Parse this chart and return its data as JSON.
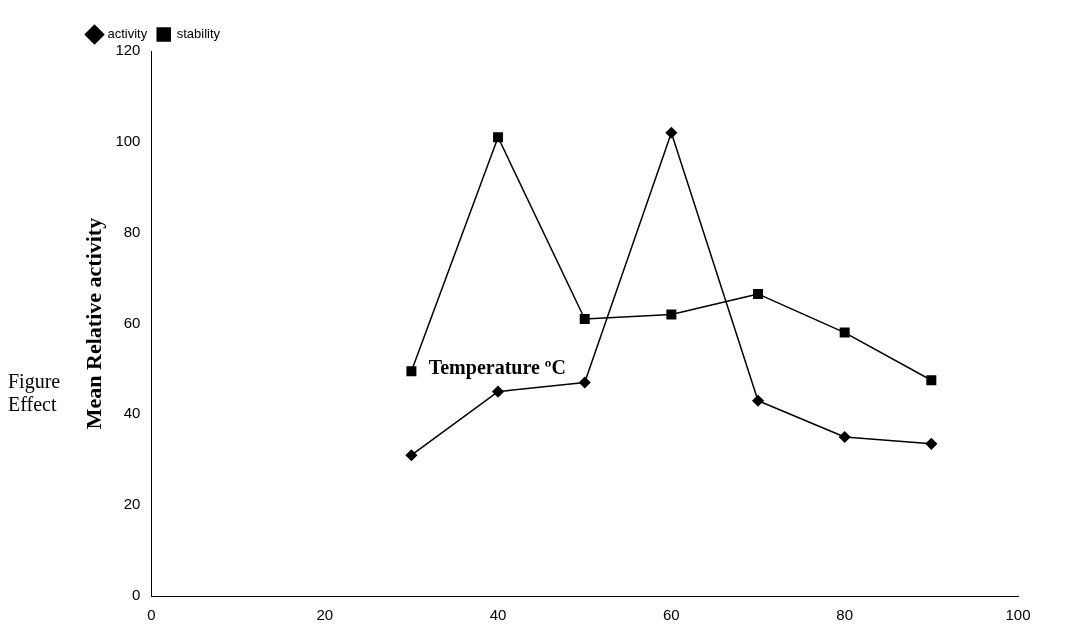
{
  "chart_data": {
    "type": "line",
    "ylabel": "Mean Relative activity",
    "annotations": [
      "Figure",
      "Effect",
      "Temperature ºC"
    ],
    "x": [
      30,
      40,
      50,
      60,
      70,
      80,
      90
    ],
    "series": [
      {
        "name": "activity",
        "color": "#000000",
        "marker": "diamond",
        "values": [
          31,
          45,
          47,
          102,
          43,
          35,
          33.5
        ]
      },
      {
        "name": "stability",
        "color": "#000000",
        "marker": "square",
        "values": [
          49.5,
          101,
          61,
          62,
          66.5,
          58,
          47.5
        ]
      }
    ],
    "xlim": [
      0,
      100
    ],
    "xticks": [
      0,
      20,
      40,
      60,
      80,
      100
    ],
    "ylim": [
      0,
      120
    ],
    "yticks": [
      0,
      20,
      40,
      60,
      80,
      100,
      120
    ],
    "grid": false,
    "legend": "top left",
    "line_style": "solid"
  }
}
